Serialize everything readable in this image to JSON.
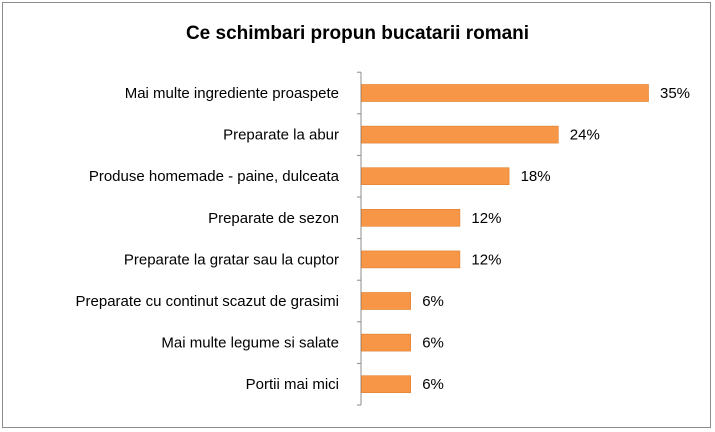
{
  "chart_data": {
    "type": "bar",
    "orientation": "horizontal",
    "title": "Ce schimbari propun bucatarii romani",
    "categories": [
      "Mai multe ingrediente proaspete",
      "Preparate la abur",
      "Produse homemade - paine, dulceata",
      "Preparate de sezon",
      "Preparate la gratar sau la cuptor",
      "Preparate cu continut scazut de grasimi",
      "Mai multe legume si salate",
      "Portii mai mici"
    ],
    "values": [
      35,
      24,
      18,
      12,
      12,
      6,
      6,
      6
    ],
    "value_labels": [
      "35%",
      "24%",
      "18%",
      "12%",
      "12%",
      "6%",
      "6%",
      "6%"
    ],
    "unit": "%",
    "xlim": [
      0,
      35
    ],
    "grid": false,
    "legend": "none",
    "colors": {
      "bar": "#F79646",
      "bar_stroke": "#E07E2E"
    }
  }
}
